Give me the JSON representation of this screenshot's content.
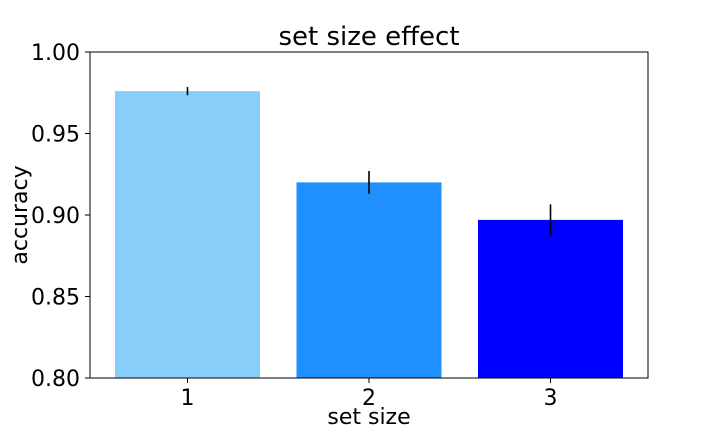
{
  "chart_data": {
    "type": "bar",
    "title": "set size effect",
    "xlabel": "set size",
    "ylabel": "accuracy",
    "categories": [
      "1",
      "2",
      "3"
    ],
    "values": [
      0.976,
      0.92,
      0.897
    ],
    "errors": [
      0.0025,
      0.007,
      0.0095
    ],
    "colors": [
      "#87CEFA",
      "#1E90FF",
      "#0000FF"
    ],
    "ylim": [
      0.8,
      1.0
    ],
    "yticks": [
      0.8,
      0.85,
      0.9,
      0.95,
      1.0
    ],
    "ytick_labels": [
      "0.80",
      "0.85",
      "0.90",
      "0.95",
      "1.00"
    ],
    "grid": false,
    "error_bar_color": "#000000"
  }
}
